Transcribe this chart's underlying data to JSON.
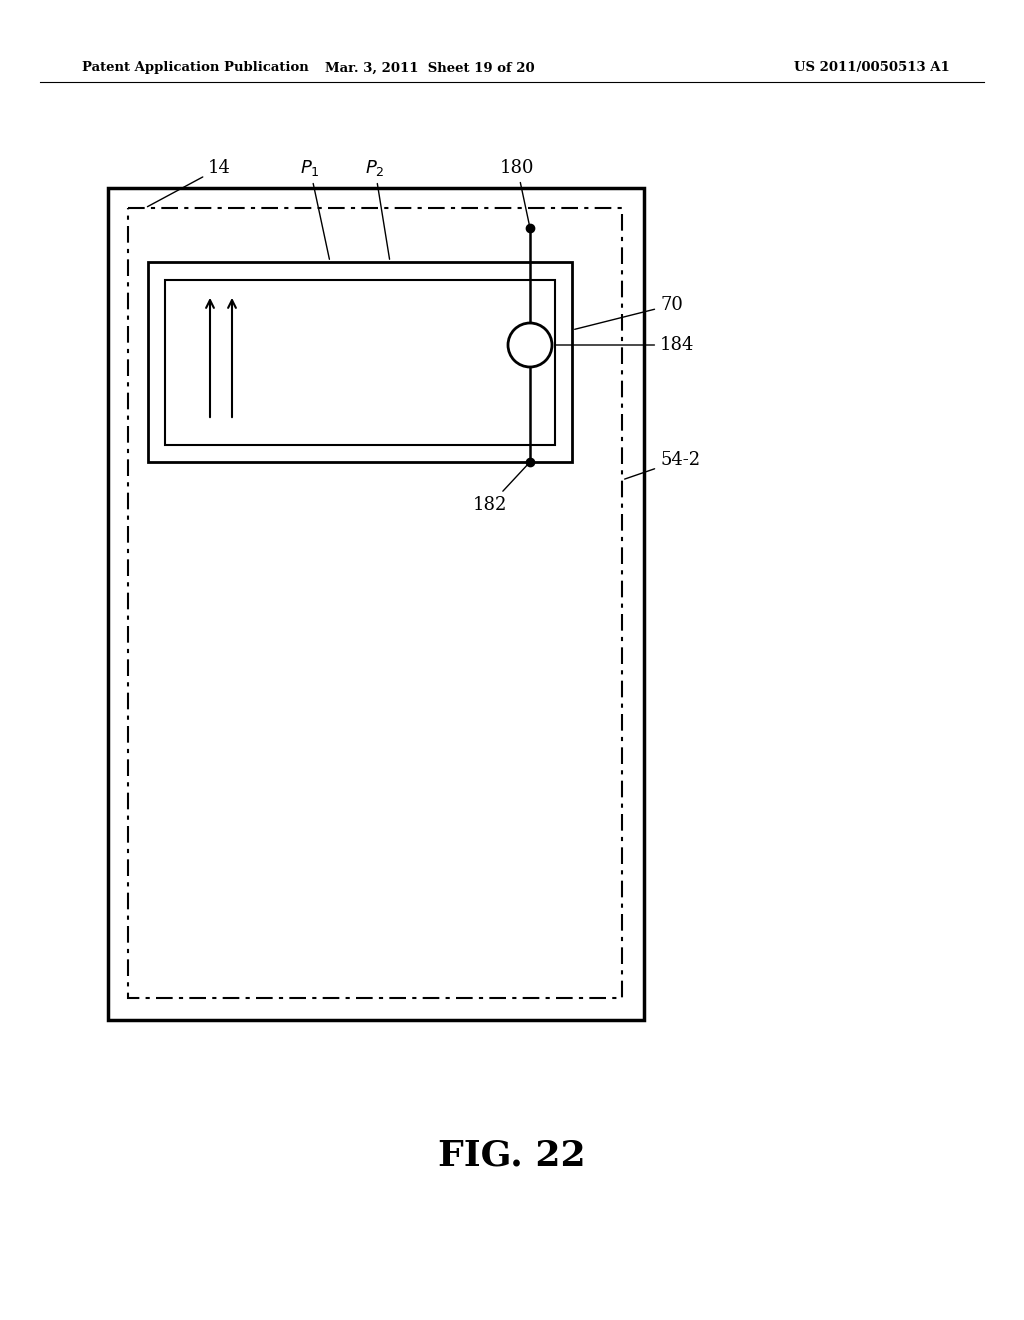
{
  "bg_color": "#ffffff",
  "header_left": "Patent Application Publication",
  "header_mid": "Mar. 3, 2011  Sheet 19 of 20",
  "header_right": "US 2011/0050513 A1",
  "fig_label": "FIG. 22",
  "line_color": "#000000"
}
